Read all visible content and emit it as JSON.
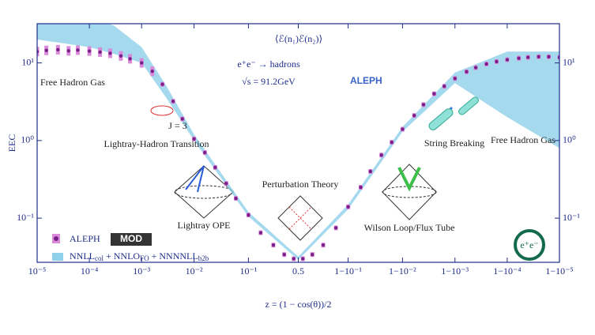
{
  "chart_data": {
    "type": "scatter",
    "xlabel": "z = (1 − cos(θ))/2",
    "ylabel": "EEC",
    "xscale": "logit",
    "yscale": "log",
    "xlim": [
      1e-05,
      0.99999
    ],
    "ylim": [
      0.027,
      32
    ],
    "xticks": [
      {
        "value": 1e-05,
        "label": "10⁻⁵"
      },
      {
        "value": 0.0001,
        "label": "10⁻⁴"
      },
      {
        "value": 0.001,
        "label": "10⁻³"
      },
      {
        "value": 0.01,
        "label": "10⁻²"
      },
      {
        "value": 0.1,
        "label": "10⁻¹"
      },
      0.5,
      {
        "value": 0.9,
        "label": "1−10⁻¹"
      },
      {
        "value": 0.99,
        "label": "1−10⁻²"
      },
      {
        "value": 0.999,
        "label": "1−10⁻³"
      },
      {
        "value": 0.9999,
        "label": "1−10⁻⁴"
      },
      {
        "value": 0.99999,
        "label": "1−10⁻⁵"
      }
    ],
    "yticks": [
      {
        "value": 0.1,
        "label": "10⁻¹"
      },
      {
        "value": 1,
        "label": "10⁰"
      },
      {
        "value": 10,
        "label": "10¹"
      }
    ],
    "series": [
      {
        "name": "ALEPH",
        "color": "#7a1f8a",
        "x": [
          1e-05,
          1.5e-05,
          2.5e-05,
          4e-05,
          6e-05,
          0.0001,
          0.00016,
          0.00025,
          0.0004,
          0.0006,
          0.001,
          0.0016,
          0.0025,
          0.004,
          0.006,
          0.01,
          0.016,
          0.025,
          0.04,
          0.06,
          0.1,
          0.16,
          0.25,
          0.35,
          0.45,
          0.55,
          0.65,
          0.75,
          0.84,
          0.9,
          0.94,
          0.96,
          0.975,
          0.984,
          0.99,
          0.994,
          0.996,
          0.9975,
          0.9984,
          0.999,
          0.9994,
          0.9996,
          0.99975,
          0.99984,
          0.9999,
          0.99994,
          0.99996,
          0.999975,
          0.999984,
          0.99999
        ],
        "values": [
          14,
          14.5,
          14.8,
          14.3,
          14.6,
          14.2,
          13.8,
          13.3,
          12.3,
          11.3,
          10,
          7.8,
          5.3,
          3.2,
          1.9,
          1.05,
          0.7,
          0.45,
          0.28,
          0.18,
          0.11,
          0.065,
          0.045,
          0.034,
          0.03,
          0.03,
          0.034,
          0.045,
          0.075,
          0.14,
          0.25,
          0.4,
          0.65,
          0.95,
          1.4,
          2.1,
          2.9,
          4,
          5,
          6.3,
          7.7,
          8.7,
          9.7,
          10.4,
          11,
          11.5,
          11.8,
          12,
          12,
          11.8
        ]
      },
      {
        "name_parts": [
          "NNLL",
          "col",
          " + NNLO",
          "FO",
          " + NNNNLL",
          "b2b"
        ],
        "color": "#8fd0ea",
        "band": true,
        "x": [
          1e-05,
          0.0001,
          0.0003,
          0.001,
          0.003,
          0.01,
          0.1,
          0.5,
          0.9,
          0.99,
          0.999,
          0.9999,
          0.99999
        ],
        "low": [
          20,
          16,
          13,
          10,
          3.5,
          1,
          0.105,
          0.029,
          0.13,
          1.3,
          5.5,
          2,
          0.8
        ],
        "high": [
          40,
          40,
          30,
          16,
          5,
          1.2,
          0.12,
          0.032,
          0.15,
          1.5,
          7.5,
          14,
          14
        ]
      }
    ],
    "annotations": [
      "⟨ℰ(n₁)ℰ(n₂)⟩",
      "e⁺e⁻ → hadrons",
      "√s = 91.2GeV",
      "ALEPH",
      "Free Hadron Gas",
      "Free Hadron Gas",
      "Lightray-Hadron Transition",
      "String Breaking",
      "Perturbation Theory",
      "Lightray OPE",
      "Wilson Loop/Flux Tube",
      "J = 3",
      "MOD",
      "e⁺e⁻"
    ]
  }
}
